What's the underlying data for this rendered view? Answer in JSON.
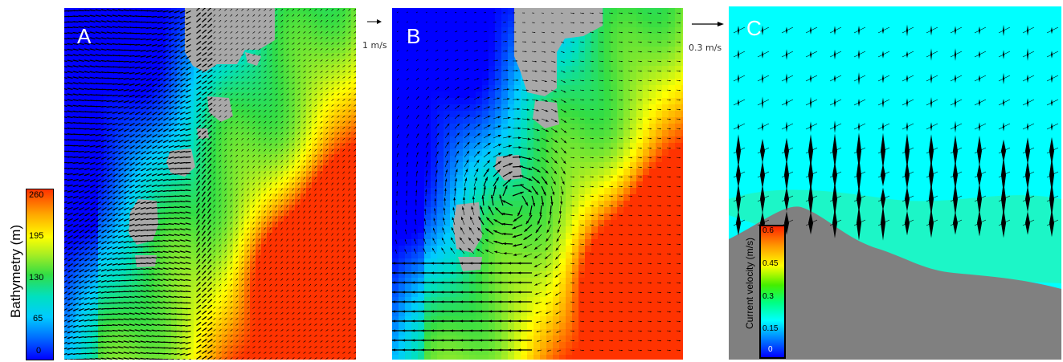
{
  "panels": {
    "a": {
      "label": "A",
      "scale_label": "1  m/s"
    },
    "b": {
      "label": "B",
      "scale_label": "0.3  m/s"
    },
    "c": {
      "label": "C"
    }
  },
  "bathymetry_colorbar": {
    "title": "Bathymetry (m)",
    "ticks": [
      "260",
      "195",
      "130",
      "65",
      "0"
    ]
  },
  "velocity_colorbar": {
    "title": "Current velocity (m/s)",
    "ticks": [
      "0.6",
      "0.45",
      "0.3",
      "0.15",
      "0"
    ]
  },
  "colors": {
    "land": "#a8a8a8",
    "seabed": "#808080",
    "shallow_water": "#00ffff",
    "vector": "#000000"
  }
}
